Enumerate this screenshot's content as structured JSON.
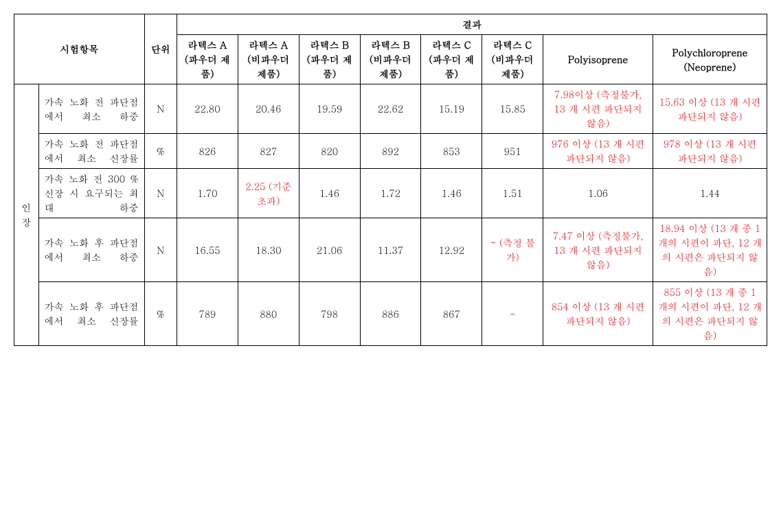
{
  "headers": {
    "test_item": "시험항목",
    "unit": "단위",
    "result": "결과",
    "latex_a_powder": "라텍스 A (파우더 제품)",
    "latex_a_nonpowder": "라텍스 A (비파우더 제품)",
    "latex_b_powder": "라텍스 B (파우더 제품)",
    "latex_b_nonpowder": "라텍스 B (비파우더 제품)",
    "latex_c_powder": "라텍스 C (파우더 제품)",
    "latex_c_nonpowder": "라텍스 C (비파우더 제품)",
    "polyisoprene": "Polyisoprene",
    "polychloroprene": "Polychloroprene (Neoprene)"
  },
  "category": "인장",
  "rows": [
    {
      "item": "가속 노화 전 파단점에서 최소 하중",
      "unit": "N",
      "cells": [
        {
          "text": "22.80",
          "red": false
        },
        {
          "text": "20.46",
          "red": false
        },
        {
          "text": "19.59",
          "red": false
        },
        {
          "text": "22.62",
          "red": false
        },
        {
          "text": "15.19",
          "red": false
        },
        {
          "text": "15.85",
          "red": false
        },
        {
          "text": "7.98이상 (측정불가, 13 개 시편 파단되지 않음)",
          "red": true
        },
        {
          "text": "15.63 이상 (13 개 시편 파단되지 않음)",
          "red": true
        }
      ]
    },
    {
      "item": "가속 노화 전 파단점에서 최소 신장률",
      "unit": "%",
      "cells": [
        {
          "text": "826",
          "red": false
        },
        {
          "text": "827",
          "red": false
        },
        {
          "text": "820",
          "red": false
        },
        {
          "text": "892",
          "red": false
        },
        {
          "text": "853",
          "red": false
        },
        {
          "text": "951",
          "red": false
        },
        {
          "text": "976 이상 (13 개 시편 파단되지 않음)",
          "red": true
        },
        {
          "text": "978 이상 (13 개 시편 파단되지 않음)",
          "red": true
        }
      ]
    },
    {
      "item": "가속 노화 전 300 % 신장 시 요구되는 최대 하중",
      "unit": "N",
      "cells": [
        {
          "text": "1.70",
          "red": false
        },
        {
          "text": "2.25 (기준 초과)",
          "red": true
        },
        {
          "text": "1.46",
          "red": false
        },
        {
          "text": "1.72",
          "red": false
        },
        {
          "text": "1.46",
          "red": false
        },
        {
          "text": "1.51",
          "red": false
        },
        {
          "text": "1.06",
          "red": false
        },
        {
          "text": "1.44",
          "red": false
        }
      ]
    },
    {
      "item": "가속 노화 후 파단점에서 최소 하중",
      "unit": "N",
      "cells": [
        {
          "text": "16.55",
          "red": false
        },
        {
          "text": "18.30",
          "red": false
        },
        {
          "text": "21.06",
          "red": false
        },
        {
          "text": "11.37",
          "red": false
        },
        {
          "text": "12.92",
          "red": false
        },
        {
          "text": "- (측정 불가)",
          "red": true
        },
        {
          "text": "7.47 이상 (측정불가, 13 개 시편 파단되지 않음)",
          "red": true
        },
        {
          "text": "18.94 이상 (13 개 중 1 개의 시편이 파단, 12 개의 시편은 파단되지 않음)",
          "red": true
        }
      ]
    },
    {
      "item": "가속 노화 후 파단점에서 최소 신장률",
      "unit": "%",
      "cells": [
        {
          "text": "789",
          "red": false
        },
        {
          "text": "880",
          "red": false
        },
        {
          "text": "798",
          "red": false
        },
        {
          "text": "886",
          "red": false
        },
        {
          "text": "867",
          "red": false
        },
        {
          "text": "-",
          "red": true
        },
        {
          "text": "854 이상 (13 개 시편 파단되지 않음)",
          "red": true
        },
        {
          "text": "855 이상 (13 개 중 1 개의 시편이 파단, 12 개의 시편은 파단되지 않음)",
          "red": true
        }
      ]
    }
  ]
}
